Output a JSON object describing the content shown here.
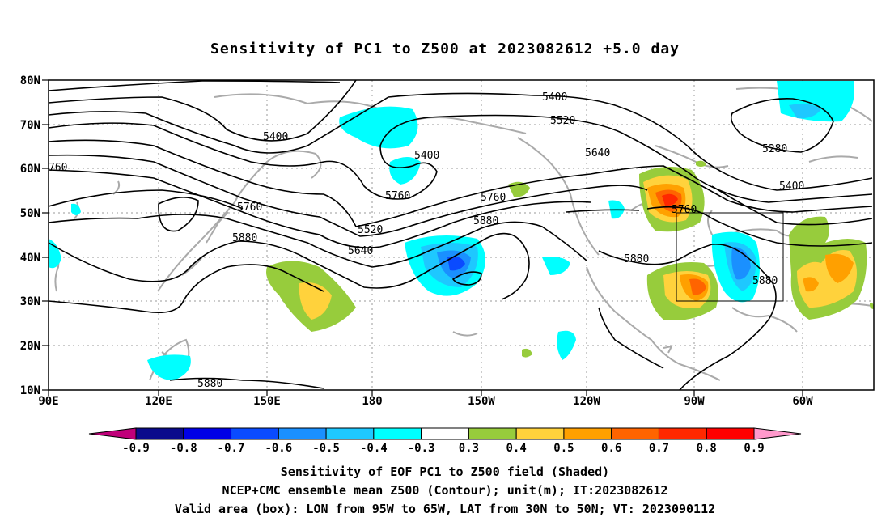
{
  "title": "Sensitivity of PC1 to Z500 at 2023082612 +5.0 day",
  "lat_labels": [
    "80N",
    "70N",
    "60N",
    "50N",
    "40N",
    "30N",
    "20N",
    "10N"
  ],
  "lon_labels": [
    "90E",
    "120E",
    "150E",
    "180",
    "150W",
    "120W",
    "90W",
    "60W"
  ],
  "contour_labels": [
    "5400",
    "5520",
    "5640",
    "5280",
    "5400",
    "5400",
    "5760",
    "5760",
    "5880",
    "5640",
    "5520",
    "5400",
    "5760",
    "5880",
    "5880",
    "5760",
    "5880",
    "5880",
    "760"
  ],
  "colorbar": {
    "colors": [
      "#c0007a",
      "#0a0a8c",
      "#0000e6",
      "#0a4bff",
      "#1a90ff",
      "#1ec8ff",
      "#00ffff",
      "#ffffff",
      "#97cc3c",
      "#ffd23c",
      "#ffa000",
      "#ff6400",
      "#ff2800",
      "#ff0000",
      "#ff99cc"
    ],
    "labels": [
      "-0.9",
      "-0.8",
      "-0.7",
      "-0.6",
      "-0.5",
      "-0.4",
      "-0.3",
      "0.3",
      "0.4",
      "0.5",
      "0.6",
      "0.7",
      "0.8",
      "0.9"
    ]
  },
  "captions": [
    "Sensitivity of EOF PC1 to Z500 field (Shaded)",
    "NCEP+CMC ensemble mean Z500 (Contour); unit(m); IT:2023082612",
    "Valid area (box): LON from 95W to 65W, LAT from 30N to 50N; VT: 2023090112"
  ]
}
